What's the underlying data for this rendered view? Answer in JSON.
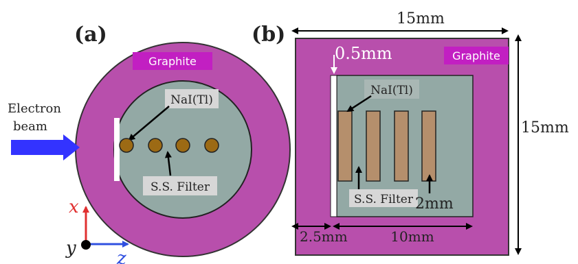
{
  "panel_a": {
    "label": "(a)",
    "graphite_label": "Graphite",
    "nai_label": "NaI(Tl)",
    "ss_filter_label": "S.S. Filter",
    "electron_beam_line1": "Electron",
    "electron_beam_line2": "beam",
    "axis_x": "x",
    "axis_y": "y",
    "axis_z": "z"
  },
  "panel_b": {
    "label": "(b)",
    "graphite_label": "Graphite",
    "nai_label": "NaI(Tl)",
    "ss_filter_label": "S.S. Filter",
    "dim_top": "15mm",
    "dim_right": "15mm",
    "dim_gap": "0.5mm",
    "dim_left_offset": "2.5mm",
    "dim_inner_width": "10mm",
    "dim_crystal_width": "2mm"
  },
  "colors": {
    "graphite": "#b84fac",
    "graphite_label_bg": "#c21fc2",
    "inner_fill": "#93a9a5",
    "crystal": "#b58f6c",
    "filter_dot": "#9c6a14",
    "beam": "#3333ff",
    "label_box": "#d7d7d7",
    "axis_x": "#e03030",
    "axis_z": "#3050e0"
  }
}
